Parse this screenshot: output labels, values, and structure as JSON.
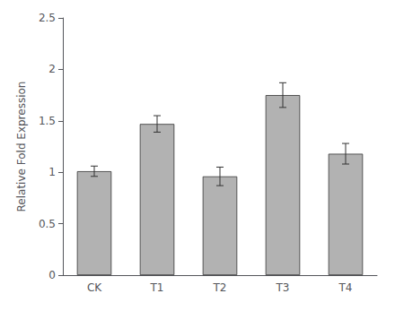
{
  "chart_data": {
    "type": "bar",
    "categories": [
      "CK",
      "T1",
      "T2",
      "T3",
      "T4"
    ],
    "values": [
      1.01,
      1.47,
      0.96,
      1.75,
      1.18
    ],
    "errors": [
      0.05,
      0.08,
      0.09,
      0.12,
      0.1
    ],
    "color": "#b2b2b2",
    "ylabel": "Relative Fold Expression",
    "ylim": [
      0,
      2.5
    ],
    "yticks": [
      0,
      0.5,
      1,
      1.5,
      2,
      2.5
    ],
    "grid": false
  }
}
